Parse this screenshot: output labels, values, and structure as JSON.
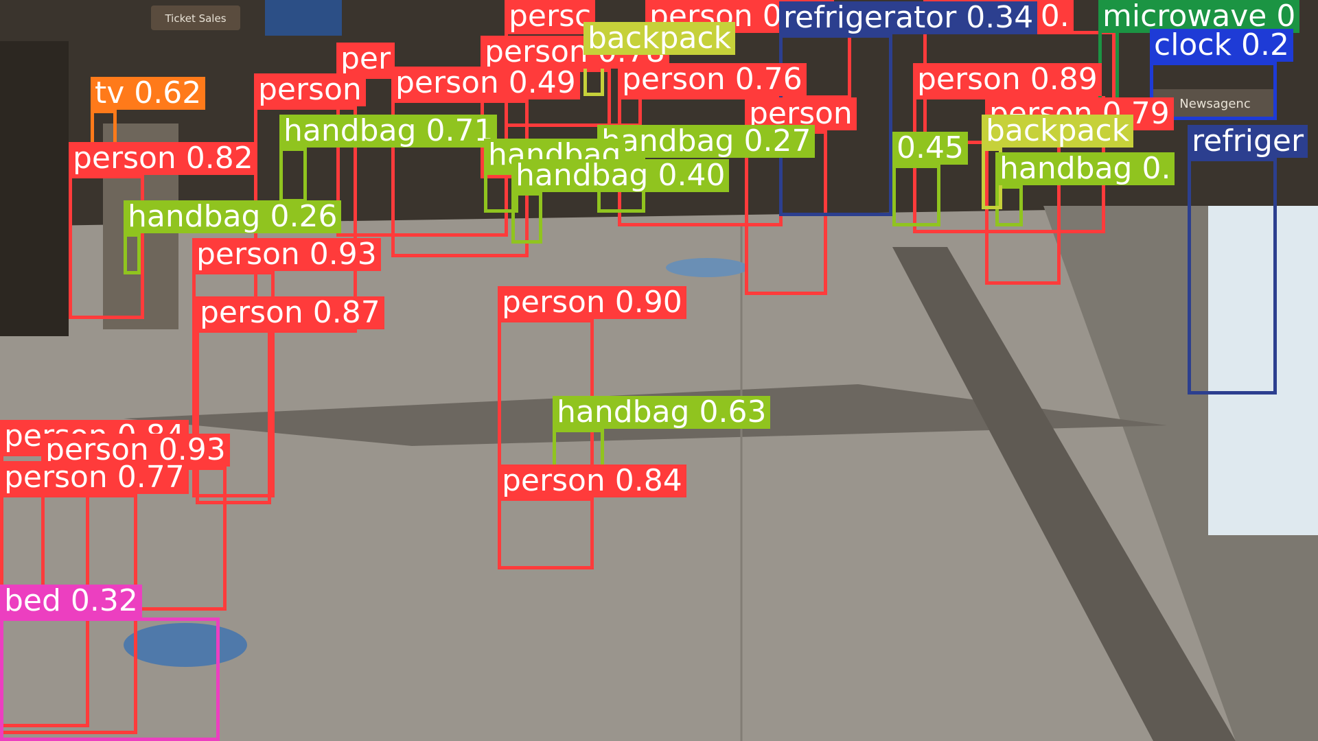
{
  "scene": {
    "signs": {
      "ticket_sales": "Ticket Sales",
      "newsagency": "Newsagenc"
    }
  },
  "classes": {
    "person": "#ff3b3b",
    "handbag": "#90c41f",
    "backpack": "#c6d13a",
    "refrigerator": "#2c3f8f",
    "microwave": "#1b9443",
    "clock": "#1e3bd6",
    "tv": "#ff7a1a",
    "bed": "#ec3fc0"
  },
  "detections": [
    {
      "label": "person 0.80",
      "cls": "person"
    },
    {
      "label": "persc",
      "cls": "person"
    },
    {
      "label": "person 0.",
      "cls": "person"
    },
    {
      "label": "person 0.78",
      "cls": "person"
    },
    {
      "label": "per",
      "cls": "person"
    },
    {
      "label": "person 0.49",
      "cls": "person"
    },
    {
      "label": "person 0.76",
      "cls": "person"
    },
    {
      "label": "person 0.89",
      "cls": "person"
    },
    {
      "label": "person 0.79",
      "cls": "person"
    },
    {
      "label": "person 0.82",
      "cls": "person"
    },
    {
      "label": "person 0.93",
      "cls": "person"
    },
    {
      "label": "person 0.87",
      "cls": "person"
    },
    {
      "label": "person 0.90",
      "cls": "person"
    },
    {
      "label": "person 0.84",
      "cls": "person"
    },
    {
      "label": "person 0.93",
      "cls": "person"
    },
    {
      "label": "person 0.77",
      "cls": "person"
    },
    {
      "label": "person 0.84",
      "cls": "person"
    },
    {
      "label": "person",
      "cls": "person"
    },
    {
      "label": "person",
      "cls": "person"
    },
    {
      "label": "handbag 0.71",
      "cls": "handbag"
    },
    {
      "label": "handbag 0.27",
      "cls": "handbag"
    },
    {
      "label": "handbag",
      "cls": "handbag"
    },
    {
      "label": "handbag 0.40",
      "cls": "handbag"
    },
    {
      "label": "0.45",
      "cls": "handbag"
    },
    {
      "label": "handbag 0.",
      "cls": "handbag"
    },
    {
      "label": "handbag 0.26",
      "cls": "handbag"
    },
    {
      "label": "handbag 0.63",
      "cls": "handbag"
    },
    {
      "label": "backpack",
      "cls": "backpack"
    },
    {
      "label": "backpack",
      "cls": "backpack"
    },
    {
      "label": "refrigerator 0.34",
      "cls": "refrigerator"
    },
    {
      "label": "refriger",
      "cls": "refrigerator"
    },
    {
      "label": "microwave 0",
      "cls": "microwave"
    },
    {
      "label": "clock 0.2",
      "cls": "clock"
    },
    {
      "label": "tv 0.62",
      "cls": "tv"
    },
    {
      "label": "bed 0.32",
      "cls": "bed"
    }
  ]
}
